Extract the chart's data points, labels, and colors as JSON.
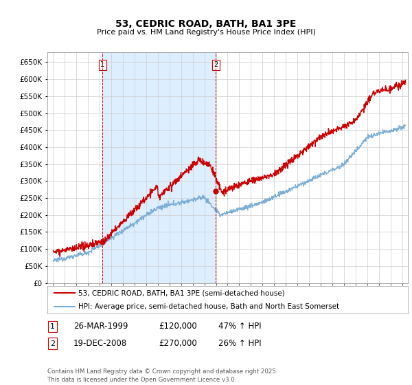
{
  "title": "53, CEDRIC ROAD, BATH, BA1 3PE",
  "subtitle": "Price paid vs. HM Land Registry's House Price Index (HPI)",
  "red_color": "#cc0000",
  "blue_color": "#7aaed6",
  "shade_color": "#ddeeff",
  "grid_color": "#cccccc",
  "background_color": "#ffffff",
  "legend_label_red": "53, CEDRIC ROAD, BATH, BA1 3PE (semi-detached house)",
  "legend_label_blue": "HPI: Average price, semi-detached house, Bath and North East Somerset",
  "purchase1_date": "26-MAR-1999",
  "purchase1_price": "£120,000",
  "purchase1_hpi": "47% ↑ HPI",
  "purchase2_date": "19-DEC-2008",
  "purchase2_price": "£270,000",
  "purchase2_hpi": "26% ↑ HPI",
  "footnote": "Contains HM Land Registry data © Crown copyright and database right 2025.\nThis data is licensed under the Open Government Licence v3.0.",
  "purchase1_x": 1999.23,
  "purchase1_y": 120000,
  "purchase2_x": 2008.97,
  "purchase2_y": 270000,
  "ylim": [
    0,
    680000
  ],
  "yticks": [
    0,
    50000,
    100000,
    150000,
    200000,
    250000,
    300000,
    350000,
    400000,
    450000,
    500000,
    550000,
    600000,
    650000
  ],
  "xmin": 1994.5,
  "xmax": 2025.5
}
